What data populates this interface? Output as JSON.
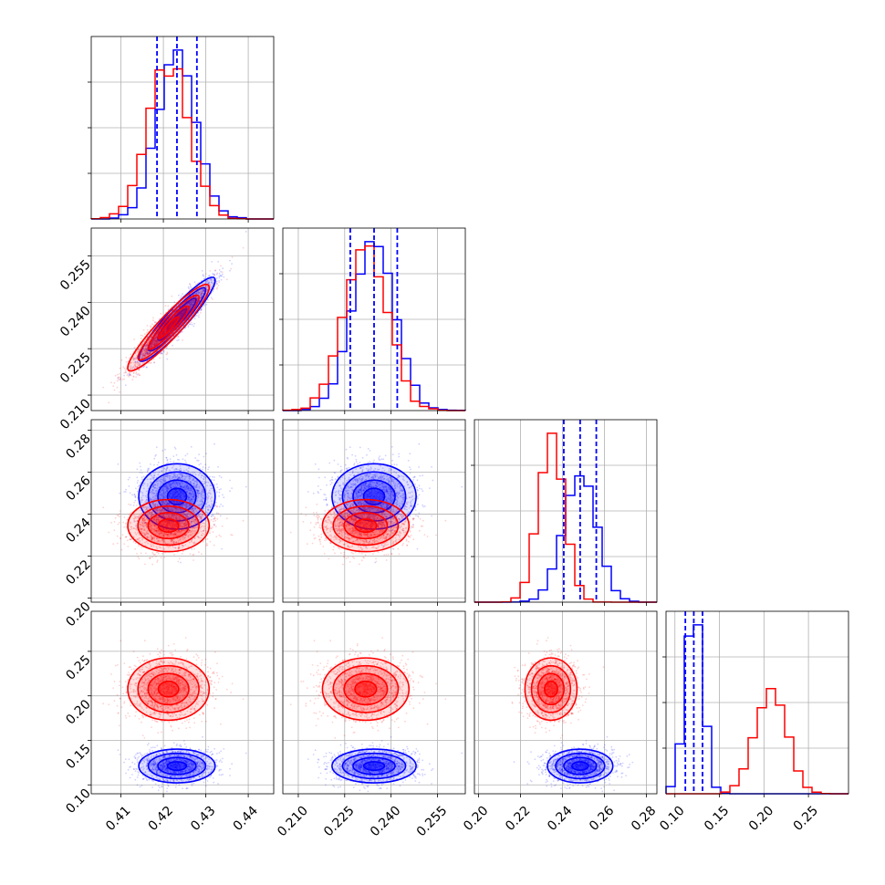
{
  "chart_data": {
    "type": "corner",
    "parameters": [
      {
        "range": [
          0.403,
          0.446
        ],
        "ticks": [
          0.41,
          0.42,
          0.43,
          0.44
        ],
        "tick_labels": [
          "0.41",
          "0.42",
          "0.43",
          "0.44"
        ]
      },
      {
        "range": [
          0.205,
          0.264
        ],
        "ticks": [
          0.21,
          0.225,
          0.24,
          0.255
        ],
        "tick_labels": [
          "0.210",
          "0.225",
          "0.240",
          "0.255"
        ]
      },
      {
        "range": [
          0.198,
          0.285
        ],
        "ticks": [
          0.2,
          0.22,
          0.24,
          0.26,
          0.28
        ],
        "tick_labels": [
          "0.20",
          "0.22",
          "0.24",
          "0.26",
          "0.28"
        ]
      },
      {
        "range": [
          0.09,
          0.295
        ],
        "ticks": [
          0.1,
          0.15,
          0.2,
          0.25
        ],
        "tick_labels": [
          "0.10",
          "0.15",
          "0.20",
          "0.25"
        ]
      }
    ],
    "grid": true,
    "series": [
      {
        "color": "#0000ff",
        "mean": [
          0.4232,
          0.2345,
          0.2484,
          0.1212
        ],
        "std": [
          0.0045,
          0.0068,
          0.0078,
          0.0095
        ],
        "correlation": [
          [
            1,
            0.93,
            0.0,
            0.0
          ],
          [
            0.93,
            1,
            0.0,
            0.0
          ],
          [
            0.0,
            0.0,
            1,
            0.0
          ],
          [
            0.0,
            0.0,
            0.0,
            1
          ]
        ],
        "quantiles_16_50_84": [
          [
            0.4185,
            0.4232,
            0.4279
          ],
          [
            0.2268,
            0.2345,
            0.242
          ],
          [
            0.2406,
            0.2484,
            0.2561
          ],
          [
            0.1117,
            0.1212,
            0.131
          ]
        ]
      },
      {
        "color": "#ff0000",
        "mean": [
          0.4212,
          0.2318,
          0.2345,
          0.2076
        ],
        "std": [
          0.0048,
          0.007,
          0.0062,
          0.0175
        ],
        "correlation": [
          [
            1,
            0.93,
            0.0,
            0.0
          ],
          [
            0.93,
            1,
            0.0,
            0.0
          ],
          [
            0.0,
            0.0,
            1,
            0.0
          ],
          [
            0.0,
            0.0,
            0.0,
            1
          ]
        ]
      }
    ],
    "quantile_line_color": "#0000ff"
  }
}
